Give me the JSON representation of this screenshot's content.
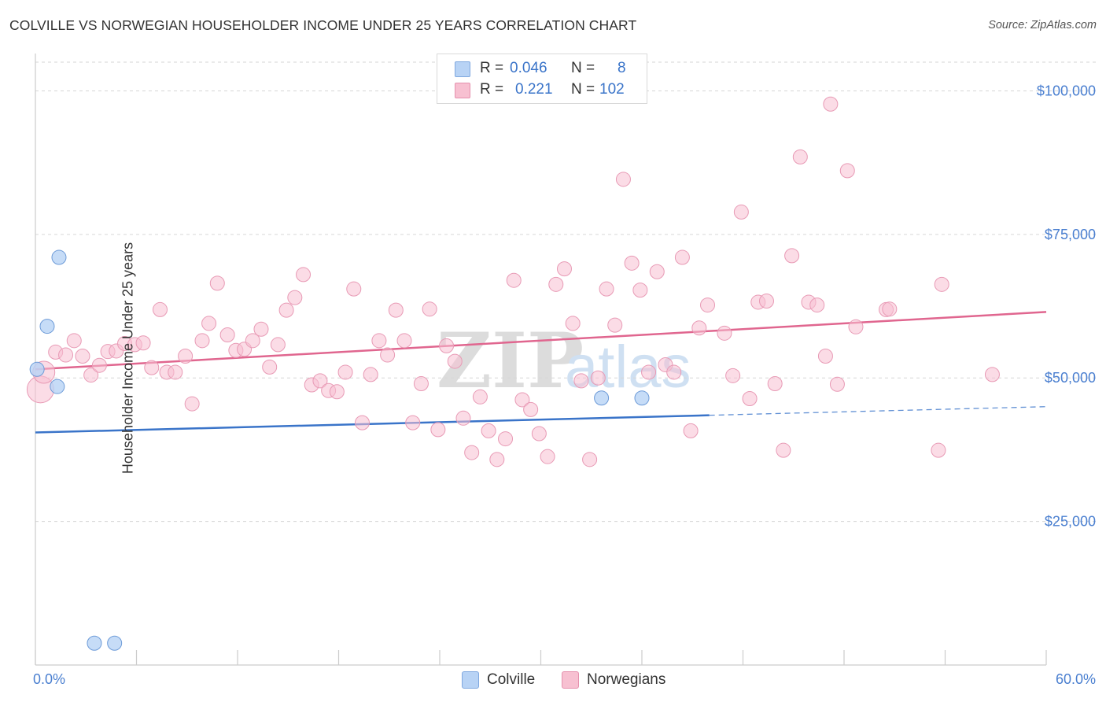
{
  "title": "COLVILLE VS NORWEGIAN HOUSEHOLDER INCOME UNDER 25 YEARS CORRELATION CHART",
  "source": "Source: ZipAtlas.com",
  "colors": {
    "blue": "#3a74c9",
    "blue_fill": "#b8d3f5",
    "pink": "#e0668f",
    "pink_fill": "#f7c0d1",
    "grid": "#d6d6d6",
    "axis_text": "#4a7fd0"
  },
  "legend": {
    "row1": {
      "r_label": "R =",
      "r_value": "0.046",
      "n_label": "N =",
      "n_value": "8"
    },
    "row2": {
      "r_label": "R =",
      "r_value": "0.221",
      "n_label": "N =",
      "n_value": "102"
    }
  },
  "chart_data": {
    "type": "scatter",
    "title": "COLVILLE VS NORWEGIAN HOUSEHOLDER INCOME UNDER 25 YEARS CORRELATION CHART",
    "xlabel": "",
    "ylabel": "Householder Income Under 25 years",
    "xlim": [
      0,
      60
    ],
    "ylim": [
      0,
      105000
    ],
    "x_tick_labels": [
      "0.0%",
      "60.0%"
    ],
    "y_ticks": [
      25000,
      50000,
      75000,
      100000
    ],
    "y_tick_labels": [
      "$25,000",
      "$50,000",
      "$75,000",
      "$100,000"
    ],
    "grid": true,
    "legend_position": "bottom",
    "series": [
      {
        "name": "Colville",
        "color": "#3a74c9",
        "points": [
          [
            0.1,
            51500
          ],
          [
            0.7,
            59000
          ],
          [
            1.4,
            71000
          ],
          [
            1.3,
            48500
          ],
          [
            3.5,
            3800
          ],
          [
            4.7,
            3800
          ],
          [
            33.6,
            46500
          ],
          [
            36.0,
            46500
          ]
        ],
        "trend": {
          "x": [
            0,
            40
          ],
          "y": [
            40500,
            43500
          ],
          "dashed_x": [
            40,
            60
          ],
          "dashed_y": [
            43500,
            45000
          ]
        }
      },
      {
        "name": "Norwegians",
        "color": "#e0668f",
        "points": [
          [
            0.3,
            48000
          ],
          [
            0.5,
            51000
          ],
          [
            1.2,
            54500
          ],
          [
            1.8,
            54000
          ],
          [
            2.3,
            56500
          ],
          [
            2.8,
            53800
          ],
          [
            3.3,
            50500
          ],
          [
            3.8,
            52200
          ],
          [
            4.3,
            54600
          ],
          [
            4.8,
            54700
          ],
          [
            5.3,
            56000
          ],
          [
            5.9,
            55800
          ],
          [
            6.4,
            56100
          ],
          [
            6.9,
            51800
          ],
          [
            7.4,
            61900
          ],
          [
            7.8,
            51000
          ],
          [
            8.3,
            51000
          ],
          [
            8.9,
            53800
          ],
          [
            9.3,
            45500
          ],
          [
            9.9,
            56500
          ],
          [
            10.3,
            59500
          ],
          [
            10.8,
            66500
          ],
          [
            11.4,
            57500
          ],
          [
            11.9,
            54800
          ],
          [
            12.4,
            55000
          ],
          [
            12.9,
            56500
          ],
          [
            13.4,
            58500
          ],
          [
            13.9,
            51900
          ],
          [
            14.4,
            55800
          ],
          [
            14.9,
            61800
          ],
          [
            15.4,
            64000
          ],
          [
            15.9,
            68000
          ],
          [
            16.4,
            48800
          ],
          [
            16.9,
            49500
          ],
          [
            17.4,
            47800
          ],
          [
            17.9,
            47600
          ],
          [
            18.4,
            51000
          ],
          [
            18.9,
            65500
          ],
          [
            19.4,
            42200
          ],
          [
            19.9,
            50600
          ],
          [
            20.4,
            56500
          ],
          [
            20.9,
            54000
          ],
          [
            21.4,
            61800
          ],
          [
            21.9,
            56500
          ],
          [
            22.4,
            42200
          ],
          [
            22.9,
            49000
          ],
          [
            23.4,
            62000
          ],
          [
            23.9,
            41000
          ],
          [
            24.4,
            55600
          ],
          [
            24.9,
            52900
          ],
          [
            25.4,
            43000
          ],
          [
            25.9,
            37000
          ],
          [
            26.4,
            46700
          ],
          [
            26.9,
            40800
          ],
          [
            27.4,
            35800
          ],
          [
            27.9,
            39400
          ],
          [
            28.4,
            67000
          ],
          [
            28.9,
            46200
          ],
          [
            29.4,
            44500
          ],
          [
            29.9,
            40300
          ],
          [
            30.4,
            36300
          ],
          [
            30.9,
            66300
          ],
          [
            31.4,
            69000
          ],
          [
            31.9,
            59500
          ],
          [
            32.4,
            49500
          ],
          [
            32.9,
            35800
          ],
          [
            33.4,
            50000
          ],
          [
            33.9,
            65500
          ],
          [
            34.4,
            59200
          ],
          [
            34.9,
            84600
          ],
          [
            35.4,
            70000
          ],
          [
            35.9,
            65300
          ],
          [
            36.4,
            51000
          ],
          [
            36.9,
            68500
          ],
          [
            37.4,
            52300
          ],
          [
            37.9,
            51000
          ],
          [
            38.4,
            71000
          ],
          [
            38.9,
            40800
          ],
          [
            39.4,
            58700
          ],
          [
            39.9,
            62700
          ],
          [
            40.9,
            57800
          ],
          [
            41.4,
            50400
          ],
          [
            41.9,
            78900
          ],
          [
            42.4,
            46400
          ],
          [
            42.9,
            63200
          ],
          [
            43.4,
            63400
          ],
          [
            43.9,
            49000
          ],
          [
            44.4,
            37400
          ],
          [
            44.9,
            71300
          ],
          [
            45.4,
            88500
          ],
          [
            45.9,
            63200
          ],
          [
            46.4,
            62700
          ],
          [
            46.9,
            53800
          ],
          [
            47.2,
            97700
          ],
          [
            47.6,
            48900
          ],
          [
            48.2,
            86100
          ],
          [
            48.7,
            58900
          ],
          [
            50.5,
            61900
          ],
          [
            50.7,
            62000
          ],
          [
            53.6,
            37400
          ],
          [
            53.8,
            66300
          ],
          [
            56.8,
            50600
          ]
        ],
        "trend": {
          "x": [
            0,
            60
          ],
          "y": [
            51500,
            61500
          ]
        }
      }
    ]
  },
  "bottom_legend": {
    "item1": "Colville",
    "item2": "Norwegians"
  },
  "watermark": "ZIPatlas"
}
